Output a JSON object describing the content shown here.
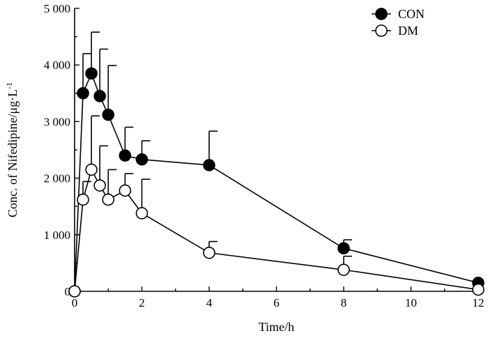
{
  "chart_data": {
    "type": "line",
    "xlabel": "Time/h",
    "ylabel": "Conc. of Nifedipine/μg·L",
    "ylabel_superscript": "-1",
    "xlim": [
      0,
      12
    ],
    "ylim": [
      0,
      5000
    ],
    "x_ticks": [
      0,
      2,
      4,
      6,
      8,
      10,
      12
    ],
    "x_tick_labels": [
      "0",
      "2",
      "4",
      "6",
      "8",
      "10",
      "12"
    ],
    "y_ticks": [
      0,
      1000,
      2000,
      3000,
      4000,
      5000
    ],
    "y_tick_labels": [
      "0",
      "1 000",
      "2 000",
      "3 000",
      "4 000",
      "5 000"
    ],
    "grid": false,
    "legend_position": "top-right",
    "series": [
      {
        "name": "CON",
        "marker": "filled-circle",
        "color": "#000000",
        "x": [
          0,
          0.25,
          0.5,
          0.75,
          1,
          1.5,
          2,
          4,
          8,
          12
        ],
        "y": [
          0,
          3500,
          3850,
          3450,
          3120,
          2400,
          2330,
          2230,
          760,
          150
        ],
        "error": [
          0,
          700,
          730,
          830,
          870,
          500,
          330,
          600,
          150,
          0
        ]
      },
      {
        "name": "DM",
        "marker": "open-circle",
        "color": "#000000",
        "x": [
          0,
          0.25,
          0.5,
          0.75,
          1,
          1.5,
          2,
          4,
          8,
          12
        ],
        "y": [
          0,
          1620,
          2150,
          1870,
          1620,
          1780,
          1380,
          680,
          380,
          30
        ],
        "error": [
          0,
          320,
          950,
          700,
          530,
          300,
          600,
          200,
          240,
          0
        ]
      }
    ]
  }
}
